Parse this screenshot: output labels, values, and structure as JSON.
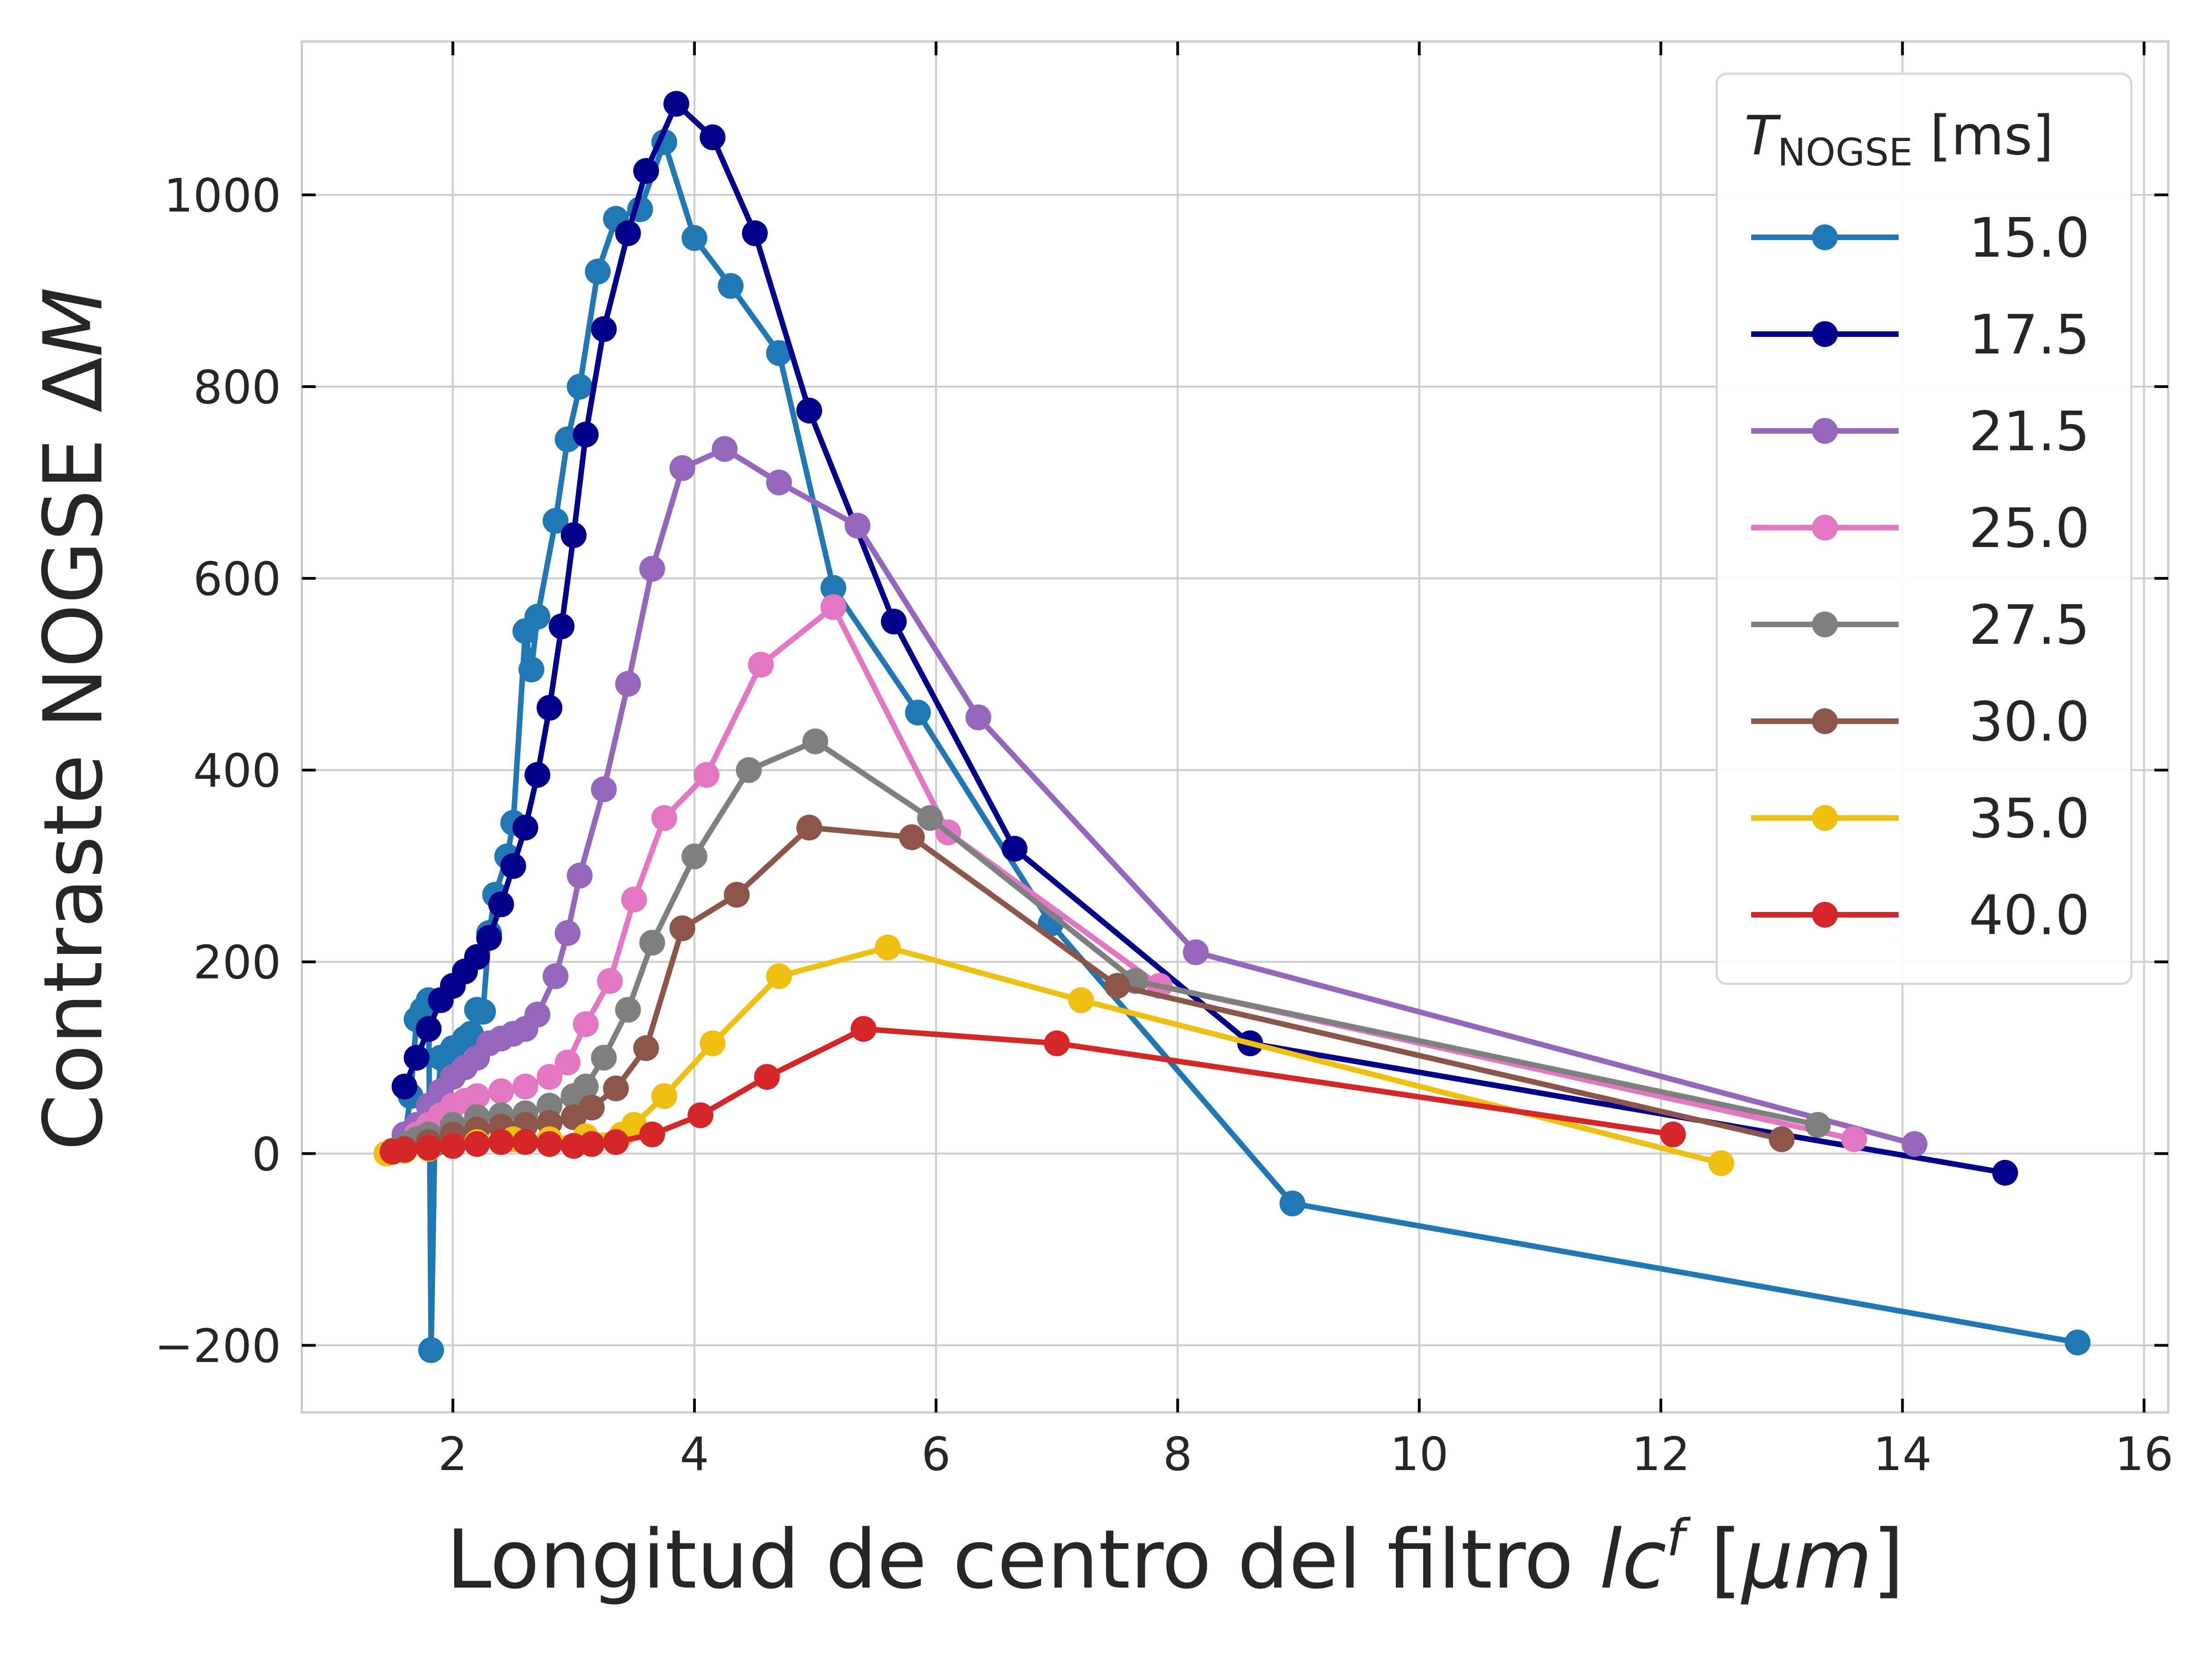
{
  "chart_data": {
    "type": "line",
    "xlabel": {
      "main": "Longitud de centro del filtro ",
      "sym": "lc",
      "sup": "f",
      "bracket_open": " [",
      "unit": "μm",
      "bracket_close": "]"
    },
    "ylabel": {
      "main": "Contraste NOGSE Δ",
      "sym": "M"
    },
    "xlim": [
      0.75,
      16.2
    ],
    "ylim": [
      -270,
      1160
    ],
    "xticks": [
      2,
      4,
      6,
      8,
      10,
      12,
      14,
      16
    ],
    "yticks": [
      -200,
      0,
      200,
      400,
      600,
      800,
      1000
    ],
    "grid": true,
    "legend": {
      "position": "top-right",
      "title_sym": "T",
      "title_sub": "NOGSE",
      "title_unit": " [ms]"
    },
    "series": [
      {
        "name": "15.0",
        "color": "#1f77b4",
        "points": [
          [
            1.5,
            2
          ],
          [
            1.55,
            5
          ],
          [
            1.6,
            15
          ],
          [
            1.65,
            60
          ],
          [
            1.7,
            140
          ],
          [
            1.75,
            150
          ],
          [
            1.8,
            160
          ],
          [
            1.82,
            -205
          ],
          [
            1.85,
            10
          ],
          [
            1.9,
            100
          ],
          [
            2.0,
            110
          ],
          [
            2.1,
            120
          ],
          [
            2.15,
            125
          ],
          [
            2.2,
            150
          ],
          [
            2.25,
            148
          ],
          [
            2.3,
            230
          ],
          [
            2.35,
            270
          ],
          [
            2.45,
            310
          ],
          [
            2.5,
            345
          ],
          [
            2.6,
            545
          ],
          [
            2.65,
            505
          ],
          [
            2.7,
            560
          ],
          [
            2.85,
            660
          ],
          [
            2.95,
            745
          ],
          [
            3.05,
            800
          ],
          [
            3.2,
            920
          ],
          [
            3.35,
            975
          ],
          [
            3.55,
            985
          ],
          [
            3.75,
            1055
          ],
          [
            4.0,
            955
          ],
          [
            4.3,
            905
          ],
          [
            4.7,
            835
          ],
          [
            5.15,
            590
          ],
          [
            5.85,
            460
          ],
          [
            6.95,
            240
          ],
          [
            8.95,
            -52
          ],
          [
            15.45,
            -197
          ]
        ]
      },
      {
        "name": "17.5",
        "color": "#00008b",
        "points": [
          [
            1.6,
            70
          ],
          [
            1.7,
            100
          ],
          [
            1.8,
            130
          ],
          [
            1.9,
            160
          ],
          [
            2.0,
            175
          ],
          [
            2.1,
            190
          ],
          [
            2.2,
            205
          ],
          [
            2.3,
            225
          ],
          [
            2.4,
            260
          ],
          [
            2.5,
            300
          ],
          [
            2.6,
            340
          ],
          [
            2.7,
            395
          ],
          [
            2.8,
            465
          ],
          [
            2.9,
            550
          ],
          [
            3.0,
            645
          ],
          [
            3.1,
            750
          ],
          [
            3.25,
            860
          ],
          [
            3.45,
            960
          ],
          [
            3.6,
            1025
          ],
          [
            3.85,
            1095
          ],
          [
            4.15,
            1060
          ],
          [
            4.5,
            960
          ],
          [
            4.95,
            775
          ],
          [
            5.65,
            555
          ],
          [
            6.65,
            318
          ],
          [
            8.6,
            115
          ],
          [
            14.85,
            -20
          ]
        ]
      },
      {
        "name": "21.5",
        "color": "#9467bd",
        "points": [
          [
            1.5,
            2
          ],
          [
            1.6,
            20
          ],
          [
            1.7,
            30
          ],
          [
            1.8,
            50
          ],
          [
            1.9,
            65
          ],
          [
            2.0,
            80
          ],
          [
            2.1,
            90
          ],
          [
            2.2,
            100
          ],
          [
            2.3,
            115
          ],
          [
            2.4,
            120
          ],
          [
            2.5,
            125
          ],
          [
            2.6,
            130
          ],
          [
            2.7,
            145
          ],
          [
            2.85,
            185
          ],
          [
            2.95,
            230
          ],
          [
            3.05,
            290
          ],
          [
            3.25,
            380
          ],
          [
            3.45,
            490
          ],
          [
            3.65,
            610
          ],
          [
            3.9,
            715
          ],
          [
            4.25,
            735
          ],
          [
            4.7,
            700
          ],
          [
            5.35,
            655
          ],
          [
            6.35,
            455
          ],
          [
            8.15,
            210
          ],
          [
            14.1,
            10
          ]
        ]
      },
      {
        "name": "25.0",
        "color": "#e377c2",
        "points": [
          [
            1.5,
            3
          ],
          [
            1.6,
            10
          ],
          [
            1.7,
            20
          ],
          [
            1.8,
            30
          ],
          [
            1.9,
            40
          ],
          [
            2.0,
            50
          ],
          [
            2.1,
            55
          ],
          [
            2.2,
            60
          ],
          [
            2.4,
            65
          ],
          [
            2.6,
            70
          ],
          [
            2.8,
            80
          ],
          [
            2.95,
            95
          ],
          [
            3.1,
            135
          ],
          [
            3.3,
            180
          ],
          [
            3.5,
            265
          ],
          [
            3.75,
            350
          ],
          [
            4.1,
            395
          ],
          [
            4.55,
            510
          ],
          [
            5.15,
            570
          ],
          [
            6.1,
            335
          ],
          [
            7.85,
            175
          ],
          [
            13.6,
            15
          ]
        ]
      },
      {
        "name": "27.5",
        "color": "#7f7f7f",
        "points": [
          [
            1.5,
            3
          ],
          [
            1.6,
            10
          ],
          [
            1.7,
            15
          ],
          [
            1.8,
            20
          ],
          [
            2.0,
            30
          ],
          [
            2.2,
            38
          ],
          [
            2.4,
            40
          ],
          [
            2.6,
            42
          ],
          [
            2.8,
            50
          ],
          [
            3.0,
            60
          ],
          [
            3.1,
            70
          ],
          [
            3.25,
            100
          ],
          [
            3.45,
            150
          ],
          [
            3.65,
            220
          ],
          [
            4.0,
            310
          ],
          [
            4.45,
            400
          ],
          [
            5.0,
            430
          ],
          [
            5.95,
            350
          ],
          [
            7.65,
            180
          ],
          [
            13.3,
            30
          ]
        ]
      },
      {
        "name": "30.0",
        "color": "#8c564b",
        "points": [
          [
            1.5,
            2
          ],
          [
            1.6,
            5
          ],
          [
            1.8,
            12
          ],
          [
            2.0,
            20
          ],
          [
            2.2,
            25
          ],
          [
            2.4,
            28
          ],
          [
            2.6,
            30
          ],
          [
            2.8,
            32
          ],
          [
            3.0,
            38
          ],
          [
            3.15,
            48
          ],
          [
            3.35,
            68
          ],
          [
            3.6,
            110
          ],
          [
            3.9,
            235
          ],
          [
            4.35,
            270
          ],
          [
            4.95,
            340
          ],
          [
            5.8,
            330
          ],
          [
            7.5,
            175
          ],
          [
            13.0,
            15
          ]
        ]
      },
      {
        "name": "35.0",
        "color": "#f0c010",
        "points": [
          [
            1.45,
            0
          ],
          [
            1.6,
            3
          ],
          [
            1.8,
            5
          ],
          [
            2.0,
            8
          ],
          [
            2.2,
            12
          ],
          [
            2.5,
            15
          ],
          [
            2.8,
            15
          ],
          [
            3.1,
            18
          ],
          [
            3.4,
            20
          ],
          [
            3.5,
            30
          ],
          [
            3.75,
            60
          ],
          [
            4.15,
            115
          ],
          [
            4.7,
            185
          ],
          [
            5.6,
            215
          ],
          [
            7.2,
            160
          ],
          [
            12.5,
            -10
          ]
        ]
      },
      {
        "name": "40.0",
        "color": "#d62728",
        "points": [
          [
            1.5,
            2
          ],
          [
            1.6,
            4
          ],
          [
            1.8,
            6
          ],
          [
            2.0,
            8
          ],
          [
            2.2,
            10
          ],
          [
            2.4,
            12
          ],
          [
            2.6,
            12
          ],
          [
            2.8,
            10
          ],
          [
            3.0,
            8
          ],
          [
            3.15,
            10
          ],
          [
            3.35,
            12
          ],
          [
            3.65,
            20
          ],
          [
            4.05,
            40
          ],
          [
            4.6,
            80
          ],
          [
            5.4,
            130
          ],
          [
            7.0,
            115
          ],
          [
            12.1,
            20
          ]
        ]
      }
    ]
  }
}
